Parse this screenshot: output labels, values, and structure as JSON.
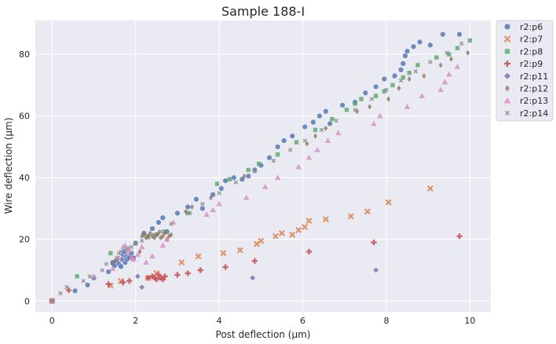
{
  "chart_data": {
    "type": "scatter",
    "title": "Sample 188-I",
    "xlabel": "Post deflection (µm)",
    "ylabel": "Wire deflection (µm)",
    "xlim": [
      -0.4,
      10.5
    ],
    "ylim": [
      -3.5,
      91
    ],
    "xticks": [
      0,
      2,
      4,
      6,
      8,
      10
    ],
    "yticks": [
      0,
      20,
      40,
      60,
      80
    ],
    "grid": true,
    "legend_position": "outside-right",
    "series": [
      {
        "name": "r2:p6",
        "color": "#4c72b0",
        "marker": "circle",
        "x": [
          0,
          0.55,
          0.85,
          1.0,
          1.35,
          1.45,
          1.5,
          1.55,
          1.6,
          1.65,
          1.68,
          1.7,
          1.72,
          1.75,
          1.78,
          1.8,
          1.85,
          1.9,
          1.95,
          2.0,
          2.2,
          2.4,
          2.55,
          2.65,
          2.75,
          3.0,
          3.25,
          3.45,
          3.6,
          3.85,
          4.05,
          4.15,
          4.35,
          4.55,
          4.7,
          4.85,
          5.0,
          5.2,
          5.4,
          5.55,
          5.75,
          6.05,
          6.25,
          6.4,
          6.55,
          6.65,
          6.95,
          7.25,
          7.5,
          7.75,
          7.95,
          8.2,
          8.35,
          8.4,
          8.45,
          8.5,
          8.65,
          8.8,
          9.05,
          9.35,
          9.75
        ],
        "y": [
          0,
          3.3,
          5.2,
          7.5,
          9.5,
          12.5,
          11.5,
          13.0,
          12.0,
          11.2,
          13.5,
          15.0,
          16.0,
          12.5,
          14.5,
          13.5,
          14.0,
          15.5,
          14.0,
          18.8,
          22.0,
          23.5,
          25.5,
          27.0,
          22.5,
          28.5,
          30.5,
          33.0,
          30.0,
          34.5,
          36.5,
          39.0,
          40.0,
          39.5,
          40.5,
          42.5,
          44.0,
          46.5,
          50.0,
          52.0,
          53.5,
          56.5,
          58.0,
          60.0,
          61.5,
          57.5,
          63.5,
          64.5,
          67.5,
          69.5,
          72.0,
          73.0,
          75.0,
          77.0,
          79.5,
          81.0,
          82.5,
          84.0,
          83.0,
          86.5,
          86.5
        ]
      },
      {
        "name": "r2:p7",
        "color": "#dd8452",
        "marker": "x",
        "x": [
          0,
          1.4,
          1.65,
          2.3,
          2.5,
          3.1,
          3.5,
          4.1,
          4.5,
          4.9,
          5.0,
          5.35,
          5.5,
          5.75,
          5.9,
          6.05,
          6.15,
          6.55,
          7.15,
          7.55,
          8.05,
          9.05
        ],
        "y": [
          0,
          5.0,
          6.5,
          7.5,
          9.0,
          12.5,
          14.5,
          15.5,
          16.5,
          18.5,
          19.5,
          21.0,
          22.0,
          21.5,
          23.0,
          24.0,
          26.0,
          26.5,
          27.5,
          29.0,
          32.0,
          36.5
        ]
      },
      {
        "name": "r2:p8",
        "color": "#55a868",
        "marker": "square",
        "x": [
          0,
          0.6,
          1.4,
          1.8,
          2.3,
          2.5,
          2.7,
          3.25,
          3.95,
          4.25,
          4.7,
          4.95,
          5.4,
          5.85,
          6.3,
          6.7,
          7.05,
          7.25,
          7.4,
          7.75,
          7.95,
          8.15,
          8.4,
          8.55,
          8.75,
          9.2,
          9.5,
          9.7,
          10.0
        ],
        "y": [
          0,
          8.0,
          15.5,
          17.0,
          21.0,
          21.5,
          22.5,
          28.5,
          38.0,
          39.5,
          42.5,
          44.5,
          47.5,
          51.5,
          55.5,
          59.0,
          62.0,
          64.0,
          65.5,
          66.5,
          68.0,
          70.0,
          72.5,
          74.0,
          76.5,
          79.0,
          80.0,
          82.0,
          84.5
        ]
      },
      {
        "name": "r2:p9",
        "color": "#c44e52",
        "marker": "plus",
        "x": [
          0,
          0.4,
          1.35,
          1.7,
          1.85,
          2.3,
          2.4,
          2.45,
          2.5,
          2.55,
          2.6,
          2.65,
          2.7,
          3.0,
          3.25,
          3.55,
          4.15,
          4.85,
          6.15,
          7.7,
          9.75
        ],
        "y": [
          0,
          3.5,
          5.5,
          6.0,
          6.5,
          7.5,
          8.0,
          7.5,
          7.0,
          8.5,
          7.5,
          7.0,
          8.0,
          8.5,
          9.0,
          10.0,
          11.0,
          13.0,
          16.0,
          19.0,
          21.0
        ]
      },
      {
        "name": "r2:p11",
        "color": "#8172b3",
        "marker": "diamond",
        "x": [
          0,
          1.45,
          2.05,
          2.15,
          4.8,
          7.75
        ],
        "y": [
          0,
          12.0,
          8.0,
          4.5,
          7.5,
          10.0
        ]
      },
      {
        "name": "r2:p12",
        "color": "#937860",
        "marker": "diamond-thin",
        "x": [
          0,
          1.5,
          1.9,
          2.1,
          2.15,
          2.2,
          2.25,
          2.3,
          2.35,
          2.4,
          2.45,
          2.5,
          2.55,
          2.6,
          2.65,
          2.7,
          2.75,
          2.8,
          2.85,
          3.2,
          3.35,
          3.8,
          4.6,
          6.1,
          6.3,
          6.55,
          7.3,
          7.6,
          8.05,
          8.3,
          8.55,
          8.9,
          9.3,
          9.55,
          9.95
        ],
        "y": [
          0,
          13.0,
          14.0,
          16.0,
          21.0,
          21.5,
          20.5,
          21.0,
          22.0,
          21.0,
          20.5,
          21.5,
          22.0,
          20.5,
          21.0,
          22.0,
          20.0,
          21.0,
          21.5,
          29.0,
          30.5,
          33.5,
          40.5,
          51.0,
          53.5,
          56.0,
          61.5,
          63.0,
          65.5,
          69.0,
          72.0,
          73.0,
          76.5,
          78.5,
          80.5
        ]
      },
      {
        "name": "r2:p13",
        "color": "#da8bc3",
        "marker": "triangle",
        "x": [
          0,
          1.0,
          1.45,
          1.6,
          1.7,
          1.75,
          1.8,
          1.85,
          1.9,
          1.95,
          2.05,
          2.15,
          2.25,
          2.4,
          2.65,
          2.75,
          2.9,
          3.7,
          3.85,
          4.0,
          4.65,
          5.1,
          5.4,
          5.9,
          6.15,
          6.35,
          6.6,
          6.85,
          7.7,
          7.85,
          8.5,
          8.85,
          9.3,
          9.4,
          9.5,
          9.7
        ],
        "y": [
          0,
          8.0,
          10.5,
          14.0,
          17.5,
          18.0,
          15.5,
          16.5,
          14.0,
          13.5,
          15.0,
          17.5,
          12.5,
          14.5,
          18.0,
          20.0,
          25.5,
          28.0,
          29.5,
          31.5,
          33.5,
          37.0,
          40.0,
          43.5,
          46.5,
          49.0,
          52.0,
          54.5,
          57.5,
          60.0,
          63.0,
          66.5,
          68.5,
          71.0,
          73.5,
          76.0
        ]
      },
      {
        "name": "r2:p14",
        "color": "#8c8c8c",
        "marker": "x-small",
        "x": [
          0,
          0.2,
          0.35,
          0.75,
          0.9,
          1.2,
          1.3,
          1.55,
          1.6,
          1.65,
          1.9,
          2.0,
          2.15,
          2.3,
          2.45,
          2.6,
          2.85,
          3.3,
          3.6,
          4.0,
          4.4,
          4.85,
          5.3,
          5.7,
          6.05,
          6.45,
          6.8,
          7.25,
          7.65,
          8.0,
          8.35,
          8.7,
          9.05,
          9.45,
          9.8
        ],
        "y": [
          0,
          2.5,
          4.5,
          6.5,
          8.0,
          10.0,
          12.0,
          14.0,
          15.5,
          16.0,
          17.5,
          18.5,
          19.5,
          20.5,
          21.5,
          22.5,
          25.0,
          28.5,
          31.5,
          35.0,
          38.5,
          42.0,
          45.5,
          49.0,
          52.0,
          55.5,
          58.5,
          62.0,
          65.5,
          68.5,
          71.5,
          74.5,
          77.5,
          80.5,
          83.5
        ]
      }
    ]
  }
}
